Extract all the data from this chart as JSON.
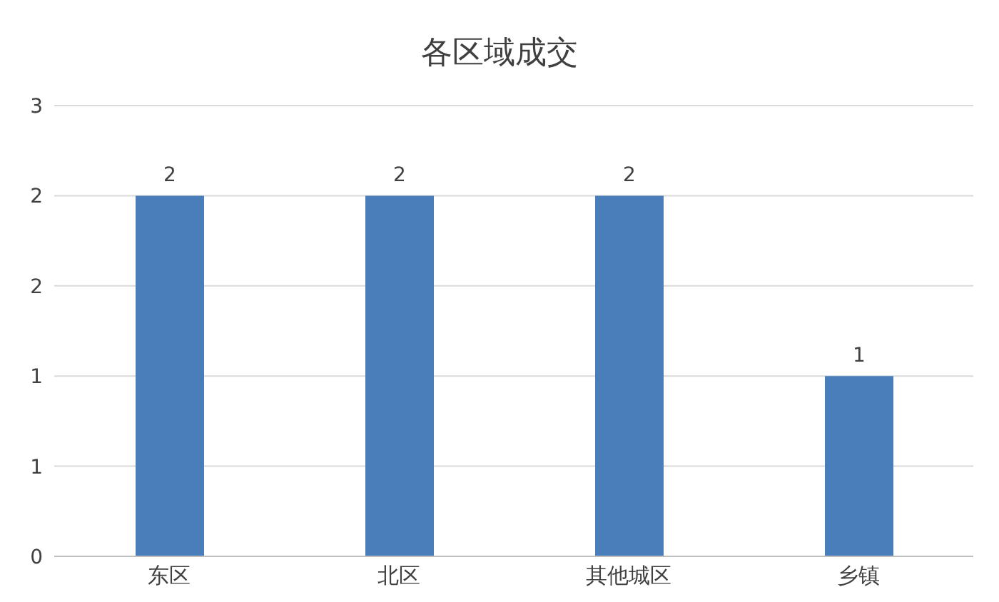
{
  "chart_data": {
    "type": "bar",
    "title": "各区域成交",
    "categories": [
      "东区",
      "北区",
      "其他城区",
      "乡镇"
    ],
    "values": [
      2,
      2,
      2,
      1
    ],
    "color": "#4a7ebb",
    "ylim": [
      0,
      2.5
    ],
    "yticks": [
      {
        "value": 0,
        "label": "0"
      },
      {
        "value": 0.5,
        "label": "1"
      },
      {
        "value": 1,
        "label": "1"
      },
      {
        "value": 1.5,
        "label": "2"
      },
      {
        "value": 2,
        "label": "2"
      },
      {
        "value": 2.5,
        "label": "3"
      }
    ],
    "grid": "y",
    "data_labels": true
  }
}
